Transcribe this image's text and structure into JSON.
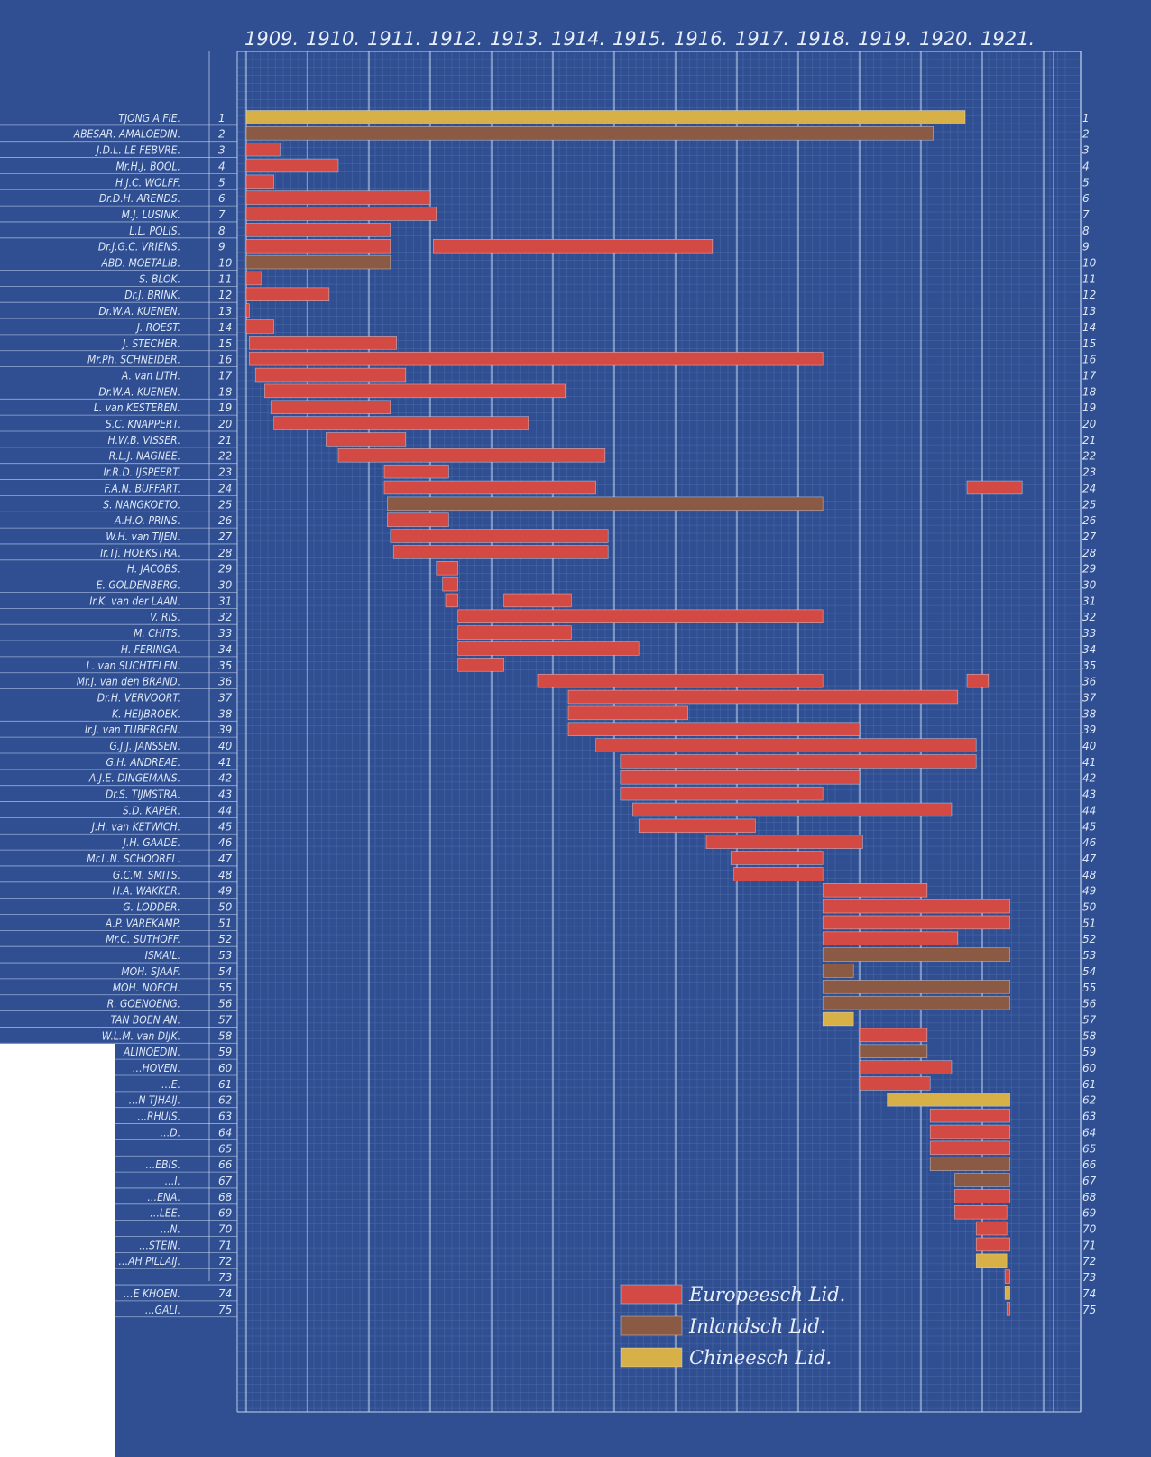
{
  "chart_data": {
    "type": "gantt",
    "years": [
      "1909.",
      "1910.",
      "1911.",
      "1912.",
      "1913.",
      "1914.",
      "1915.",
      "1916.",
      "1917.",
      "1918.",
      "1919.",
      "1920.",
      "1921."
    ],
    "xlim": [
      1909,
      1921.75
    ],
    "colors": {
      "background": "#2f4f92",
      "grid_minor": "#6f8ac0",
      "grid_major": "#c6d3ee",
      "E": "#d34a44",
      "I": "#8a5a45",
      "C": "#d8b048",
      "blank": "#ffffff"
    },
    "legend": [
      {
        "key": "E",
        "label": "Europeesch Lid."
      },
      {
        "key": "I",
        "label": "Inlandsch Lid."
      },
      {
        "key": "C",
        "label": "Chineesch Lid."
      }
    ],
    "rows": [
      {
        "n": "1",
        "name": "TJONG A FIE.",
        "bars": [
          {
            "s": 1909.0,
            "e": 1920.72,
            "t": "C"
          }
        ]
      },
      {
        "n": "2",
        "name": "ABESAR. AMALOEDIN.",
        "bars": [
          {
            "s": 1909.0,
            "e": 1920.2,
            "t": "I"
          }
        ]
      },
      {
        "n": "3",
        "name": "J.D.L. LE FEBVRE.",
        "bars": [
          {
            "s": 1909.0,
            "e": 1909.55,
            "t": "E"
          }
        ]
      },
      {
        "n": "4",
        "name": "Mr.H.J. BOOL.",
        "bars": [
          {
            "s": 1909.0,
            "e": 1910.5,
            "t": "E"
          }
        ]
      },
      {
        "n": "5",
        "name": "H.J.C. WOLFF.",
        "bars": [
          {
            "s": 1909.0,
            "e": 1909.45,
            "t": "E"
          }
        ]
      },
      {
        "n": "6",
        "name": "Dr.D.H. ARENDS.",
        "bars": [
          {
            "s": 1909.0,
            "e": 1912.0,
            "t": "E"
          }
        ]
      },
      {
        "n": "7",
        "name": "M.J. LUSINK.",
        "bars": [
          {
            "s": 1909.0,
            "e": 1912.1,
            "t": "E"
          }
        ]
      },
      {
        "n": "8",
        "name": "L.L. POLIS.",
        "bars": [
          {
            "s": 1909.0,
            "e": 1911.35,
            "t": "E"
          }
        ]
      },
      {
        "n": "9",
        "name": "Dr.J.G.C. VRIENS.",
        "bars": [
          {
            "s": 1909.0,
            "e": 1911.35,
            "t": "E"
          },
          {
            "s": 1912.05,
            "e": 1916.6,
            "t": "E"
          }
        ]
      },
      {
        "n": "10",
        "name": "ABD. MOETALIB.",
        "bars": [
          {
            "s": 1909.0,
            "e": 1911.35,
            "t": "I"
          }
        ]
      },
      {
        "n": "11",
        "name": "S. BLOK.",
        "bars": [
          {
            "s": 1909.0,
            "e": 1909.25,
            "t": "E"
          }
        ]
      },
      {
        "n": "12",
        "name": "Dr.J. BRINK.",
        "bars": [
          {
            "s": 1909.0,
            "e": 1910.35,
            "t": "E"
          }
        ]
      },
      {
        "n": "13",
        "name": "Dr.W.A. KUENEN.",
        "bars": [
          {
            "s": 1909.0,
            "e": 1909.05,
            "t": "E"
          }
        ]
      },
      {
        "n": "14",
        "name": "J. ROEST.",
        "bars": [
          {
            "s": 1909.0,
            "e": 1909.45,
            "t": "E"
          }
        ]
      },
      {
        "n": "15",
        "name": "J. STECHER.",
        "bars": [
          {
            "s": 1909.05,
            "e": 1911.45,
            "t": "E"
          }
        ]
      },
      {
        "n": "16",
        "name": "Mr.Ph. SCHNEIDER.",
        "bars": [
          {
            "s": 1909.05,
            "e": 1918.4,
            "t": "E"
          }
        ]
      },
      {
        "n": "17",
        "name": "A. van LITH.",
        "bars": [
          {
            "s": 1909.15,
            "e": 1911.6,
            "t": "E"
          }
        ]
      },
      {
        "n": "18",
        "name": "Dr.W.A. KUENEN.",
        "bars": [
          {
            "s": 1909.3,
            "e": 1914.2,
            "t": "E"
          }
        ]
      },
      {
        "n": "19",
        "name": "L. van KESTEREN.",
        "bars": [
          {
            "s": 1909.4,
            "e": 1911.35,
            "t": "E"
          }
        ]
      },
      {
        "n": "20",
        "name": "S.C. KNAPPERT.",
        "bars": [
          {
            "s": 1909.45,
            "e": 1913.6,
            "t": "E"
          }
        ]
      },
      {
        "n": "21",
        "name": "H.W.B. VISSER.",
        "bars": [
          {
            "s": 1910.3,
            "e": 1911.6,
            "t": "E"
          }
        ]
      },
      {
        "n": "22",
        "name": "R.L.J. NAGNEE.",
        "bars": [
          {
            "s": 1910.5,
            "e": 1914.85,
            "t": "E"
          }
        ]
      },
      {
        "n": "23",
        "name": "Ir.R.D. IJSPEERT.",
        "bars": [
          {
            "s": 1911.25,
            "e": 1912.3,
            "t": "E"
          }
        ]
      },
      {
        "n": "24",
        "name": "F.A.N. BUFFART.",
        "bars": [
          {
            "s": 1911.25,
            "e": 1914.7,
            "t": "E"
          },
          {
            "s": 1920.75,
            "e": 1921.65,
            "t": "E"
          }
        ]
      },
      {
        "n": "25",
        "name": "S. NANGKOETO.",
        "bars": [
          {
            "s": 1911.3,
            "e": 1918.4,
            "t": "I"
          }
        ]
      },
      {
        "n": "26",
        "name": "A.H.O. PRINS.",
        "bars": [
          {
            "s": 1911.3,
            "e": 1912.3,
            "t": "E"
          }
        ]
      },
      {
        "n": "27",
        "name": "W.H. van TIJEN.",
        "bars": [
          {
            "s": 1911.35,
            "e": 1914.9,
            "t": "E"
          }
        ]
      },
      {
        "n": "28",
        "name": "Ir.Tj. HOEKSTRA.",
        "bars": [
          {
            "s": 1911.4,
            "e": 1914.9,
            "t": "E"
          }
        ]
      },
      {
        "n": "29",
        "name": "H. JACOBS.",
        "bars": [
          {
            "s": 1912.1,
            "e": 1912.45,
            "t": "E"
          }
        ]
      },
      {
        "n": "30",
        "name": "E. GOLDENBERG.",
        "bars": [
          {
            "s": 1912.2,
            "e": 1912.45,
            "t": "E"
          }
        ]
      },
      {
        "n": "31",
        "name": "Ir.K. van der LAAN.",
        "bars": [
          {
            "s": 1912.25,
            "e": 1912.45,
            "t": "E"
          },
          {
            "s": 1913.2,
            "e": 1914.3,
            "t": "E"
          }
        ]
      },
      {
        "n": "32",
        "name": "V. RIS.",
        "bars": [
          {
            "s": 1912.45,
            "e": 1918.4,
            "t": "E"
          }
        ]
      },
      {
        "n": "33",
        "name": "M. CHITS.",
        "bars": [
          {
            "s": 1912.45,
            "e": 1914.3,
            "t": "E"
          }
        ]
      },
      {
        "n": "34",
        "name": "H. FERINGA.",
        "bars": [
          {
            "s": 1912.45,
            "e": 1915.4,
            "t": "E"
          }
        ]
      },
      {
        "n": "35",
        "name": "L. van SUCHTELEN.",
        "bars": [
          {
            "s": 1912.45,
            "e": 1913.2,
            "t": "E"
          }
        ]
      },
      {
        "n": "36",
        "name": "Mr.J. van den BRAND.",
        "bars": [
          {
            "s": 1913.75,
            "e": 1918.4,
            "t": "E"
          },
          {
            "s": 1920.75,
            "e": 1921.1,
            "t": "E"
          }
        ]
      },
      {
        "n": "37",
        "name": "Dr.H. VERVOORT.",
        "bars": [
          {
            "s": 1914.25,
            "e": 1920.6,
            "t": "E"
          }
        ]
      },
      {
        "n": "38",
        "name": "K. HEIJBROEK.",
        "bars": [
          {
            "s": 1914.25,
            "e": 1916.2,
            "t": "E"
          }
        ]
      },
      {
        "n": "39",
        "name": "Ir.J. van TUBERGEN.",
        "bars": [
          {
            "s": 1914.25,
            "e": 1919.0,
            "t": "E"
          }
        ]
      },
      {
        "n": "40",
        "name": "G.J.J. JANSSEN.",
        "bars": [
          {
            "s": 1914.7,
            "e": 1920.9,
            "t": "E"
          }
        ]
      },
      {
        "n": "41",
        "name": "G.H. ANDREAE.",
        "bars": [
          {
            "s": 1915.1,
            "e": 1920.9,
            "t": "E"
          }
        ]
      },
      {
        "n": "42",
        "name": "A.J.E. DINGEMANS.",
        "bars": [
          {
            "s": 1915.1,
            "e": 1919.0,
            "t": "E"
          }
        ]
      },
      {
        "n": "43",
        "name": "Dr.S. TIJMSTRA.",
        "bars": [
          {
            "s": 1915.1,
            "e": 1918.4,
            "t": "E"
          }
        ]
      },
      {
        "n": "44",
        "name": "S.D. KAPER.",
        "bars": [
          {
            "s": 1915.3,
            "e": 1920.5,
            "t": "E"
          }
        ]
      },
      {
        "n": "45",
        "name": "J.H. van KETWICH.",
        "bars": [
          {
            "s": 1915.4,
            "e": 1917.3,
            "t": "E"
          }
        ]
      },
      {
        "n": "46",
        "name": "J.H. GAADE.",
        "bars": [
          {
            "s": 1916.5,
            "e": 1919.05,
            "t": "E"
          }
        ]
      },
      {
        "n": "47",
        "name": "Mr.L.N. SCHOOREL.",
        "bars": [
          {
            "s": 1916.9,
            "e": 1918.4,
            "t": "E"
          }
        ]
      },
      {
        "n": "48",
        "name": "G.C.M. SMITS.",
        "bars": [
          {
            "s": 1916.95,
            "e": 1918.4,
            "t": "E"
          }
        ]
      },
      {
        "n": "49",
        "name": "H.A. WAKKER.",
        "bars": [
          {
            "s": 1918.4,
            "e": 1920.1,
            "t": "E"
          }
        ]
      },
      {
        "n": "50",
        "name": "G. LODDER.",
        "bars": [
          {
            "s": 1918.4,
            "e": 1921.45,
            "t": "E"
          }
        ]
      },
      {
        "n": "51",
        "name": "A.P. VAREKAMP.",
        "bars": [
          {
            "s": 1918.4,
            "e": 1921.45,
            "t": "E"
          }
        ]
      },
      {
        "n": "52",
        "name": "Mr.C. SUTHOFF.",
        "bars": [
          {
            "s": 1918.4,
            "e": 1920.6,
            "t": "E"
          }
        ]
      },
      {
        "n": "53",
        "name": "ISMAIL.",
        "bars": [
          {
            "s": 1918.4,
            "e": 1921.45,
            "t": "I"
          }
        ]
      },
      {
        "n": "54",
        "name": "MOH. SJAAF.",
        "bars": [
          {
            "s": 1918.4,
            "e": 1918.9,
            "t": "I"
          }
        ]
      },
      {
        "n": "55",
        "name": "MOH. NOECH.",
        "bars": [
          {
            "s": 1918.4,
            "e": 1921.45,
            "t": "I"
          }
        ]
      },
      {
        "n": "56",
        "name": "R. GOENOENG.",
        "bars": [
          {
            "s": 1918.4,
            "e": 1921.45,
            "t": "I"
          }
        ]
      },
      {
        "n": "57",
        "name": "TAN BOEN AN.",
        "bars": [
          {
            "s": 1918.4,
            "e": 1918.9,
            "t": "C"
          }
        ]
      },
      {
        "n": "58",
        "name": "W.L.M. van DIJK.",
        "bars": [
          {
            "s": 1919.0,
            "e": 1920.1,
            "t": "E"
          }
        ]
      },
      {
        "n": "59",
        "name": "ALINOEDIN.",
        "bars": [
          {
            "s": 1919.0,
            "e": 1920.1,
            "t": "I"
          }
        ]
      },
      {
        "n": "60",
        "name": "…HOVEN.",
        "bars": [
          {
            "s": 1919.0,
            "e": 1920.5,
            "t": "E"
          }
        ]
      },
      {
        "n": "61",
        "name": "…E.",
        "bars": [
          {
            "s": 1919.0,
            "e": 1920.15,
            "t": "E"
          }
        ]
      },
      {
        "n": "62",
        "name": "…N TJHAIJ.",
        "bars": [
          {
            "s": 1919.45,
            "e": 1921.45,
            "t": "C"
          }
        ]
      },
      {
        "n": "63",
        "name": "…RHUIS.",
        "bars": [
          {
            "s": 1920.15,
            "e": 1921.45,
            "t": "E"
          }
        ]
      },
      {
        "n": "64",
        "name": "…D.",
        "bars": [
          {
            "s": 1920.15,
            "e": 1921.45,
            "t": "E"
          }
        ]
      },
      {
        "n": "65",
        "name": "",
        "bars": [
          {
            "s": 1920.15,
            "e": 1921.45,
            "t": "E"
          }
        ]
      },
      {
        "n": "66",
        "name": "…EBIS.",
        "bars": [
          {
            "s": 1920.15,
            "e": 1921.45,
            "t": "I"
          }
        ]
      },
      {
        "n": "67",
        "name": "…I.",
        "bars": [
          {
            "s": 1920.55,
            "e": 1921.45,
            "t": "I"
          }
        ]
      },
      {
        "n": "68",
        "name": "…ENA.",
        "bars": [
          {
            "s": 1920.55,
            "e": 1921.45,
            "t": "E"
          }
        ]
      },
      {
        "n": "69",
        "name": "…LEE.",
        "bars": [
          {
            "s": 1920.55,
            "e": 1921.4,
            "t": "E"
          }
        ]
      },
      {
        "n": "70",
        "name": "…N.",
        "bars": [
          {
            "s": 1920.9,
            "e": 1921.4,
            "t": "E"
          }
        ]
      },
      {
        "n": "71",
        "name": "…STEIN.",
        "bars": [
          {
            "s": 1920.9,
            "e": 1921.45,
            "t": "E"
          }
        ]
      },
      {
        "n": "72",
        "name": "…AH PILLAIJ.",
        "bars": [
          {
            "s": 1920.9,
            "e": 1921.4,
            "t": "C"
          }
        ]
      },
      {
        "n": "73",
        "name": "",
        "bars": [
          {
            "s": 1921.37,
            "e": 1921.45,
            "t": "E"
          }
        ]
      },
      {
        "n": "74",
        "name": "…E KHOEN.",
        "bars": [
          {
            "s": 1921.37,
            "e": 1921.45,
            "t": "C"
          }
        ]
      },
      {
        "n": "75",
        "name": "…GALI.",
        "bars": [
          {
            "s": 1921.4,
            "e": 1921.45,
            "t": "E"
          }
        ]
      }
    ]
  }
}
